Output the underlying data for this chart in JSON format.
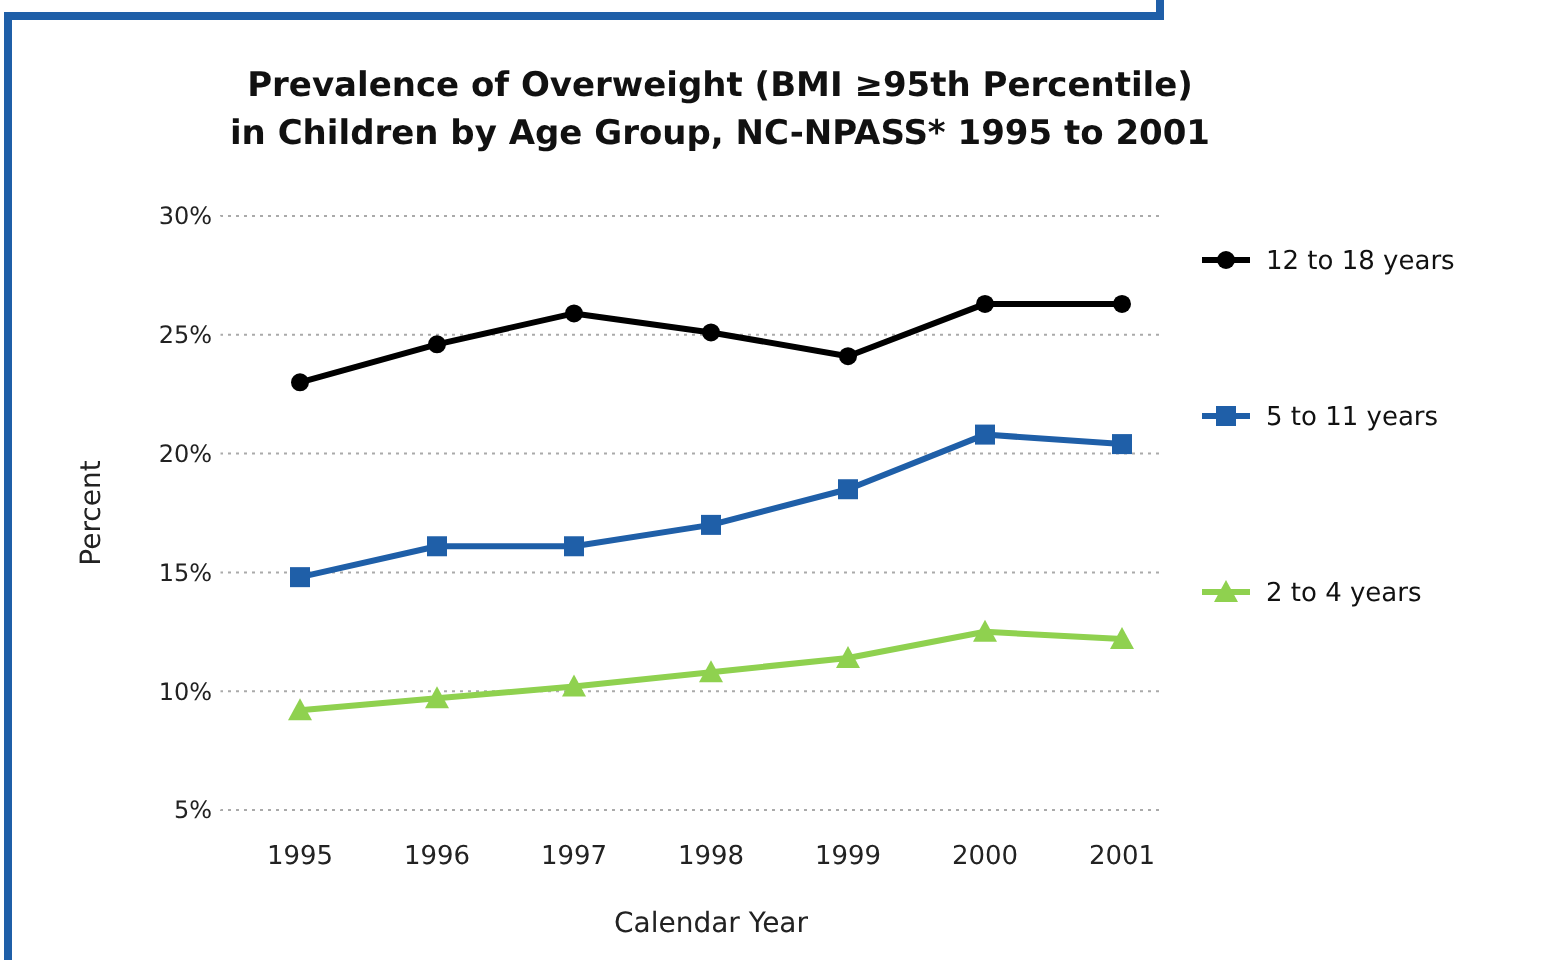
{
  "chart_data": {
    "type": "line",
    "title": "Prevalence of Overweight (BMI ≥95th Percentile)\nin Children by Age Group, NC-NPASS* 1995 to 2001",
    "xlabel": "Calendar Year",
    "ylabel": "Percent",
    "categories": [
      "1995",
      "1996",
      "1997",
      "1998",
      "1999",
      "2000",
      "2001"
    ],
    "series": [
      {
        "name": "12 to 18 years",
        "color": "#000000",
        "marker": "circle",
        "values": [
          23,
          24.6,
          25.9,
          25.1,
          24.1,
          26.3,
          26.3
        ]
      },
      {
        "name": "5 to 11 years",
        "color": "#1f5fa8",
        "marker": "square",
        "values": [
          14.8,
          16.1,
          16.1,
          17,
          18.5,
          20.8,
          20.4
        ]
      },
      {
        "name": "2 to 4 years",
        "color": "#8fd14f",
        "marker": "triangle",
        "values": [
          9.2,
          9.7,
          10.2,
          10.8,
          11.4,
          12.5,
          12.2
        ]
      }
    ],
    "ylim": [
      5,
      30
    ],
    "yticks": [
      {
        "value": 5,
        "label": "5%"
      },
      {
        "value": 10,
        "label": "10%"
      },
      {
        "value": 15,
        "label": "15%"
      },
      {
        "value": 20,
        "label": "20%"
      },
      {
        "value": 25,
        "label": "25%"
      },
      {
        "value": 30,
        "label": "30%"
      }
    ],
    "grid": "y",
    "legend": "right",
    "line_style": "solid"
  }
}
